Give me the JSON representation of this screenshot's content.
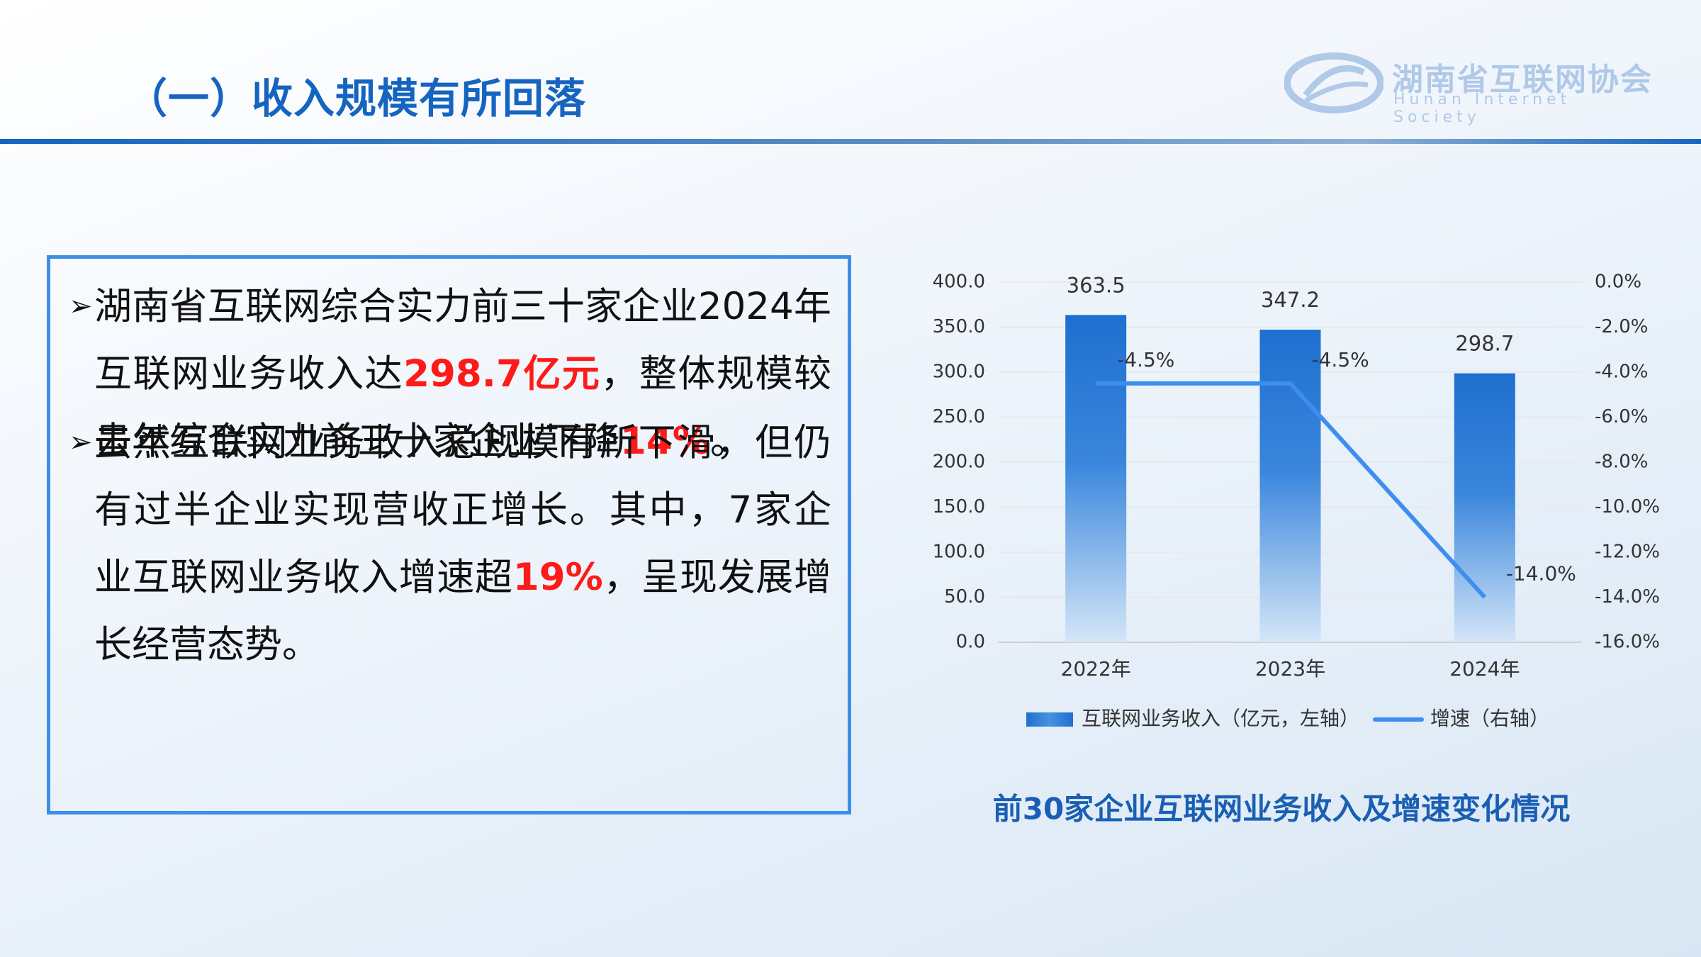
{
  "header": {
    "title": "（一）收入规模有所回落",
    "logo_cn": "湖南省互联网协会",
    "logo_en": "Hunan Internet Society"
  },
  "text_box": {
    "bullets": [
      {
        "runs": [
          {
            "text": "湖南省互联网综合实力前三十家企业2024年互联网业务收入达"
          },
          {
            "text": "298.7亿元",
            "color": "#ff1a1a"
          },
          {
            "text": "，整体规模较去年综合实力前三十家企业下降"
          },
          {
            "text": "14%",
            "color": "#ff1a1a"
          },
          {
            "text": "。"
          }
        ]
      },
      {
        "runs": [
          {
            "text": "虽然互联网业务收入总规模有所下滑，但仍有过半企业实现营收正增长。其中，7家企业互联网业务收入增速超"
          },
          {
            "text": "19%",
            "color": "#ff1a1a"
          },
          {
            "text": "，呈现发展增长经营态势。"
          }
        ]
      }
    ]
  },
  "chart_data": {
    "type": "bar-line",
    "caption": "前30家企业互联网业务收入及增速变化情况",
    "categories": [
      "2022年",
      "2023年",
      "2024年"
    ],
    "series": [
      {
        "name": "互联网业务收入（亿元，左轴）",
        "type": "bar",
        "color": "#1e6fd0",
        "values": [
          363.5,
          347.2,
          298.7
        ]
      },
      {
        "name": "增速（右轴）",
        "type": "line",
        "axis": "y2",
        "color": "#3d8ef0",
        "values": [
          -4.5,
          -4.5,
          -14.0
        ],
        "value_labels": [
          "-4.5%",
          "-4.5%",
          "-14.0%"
        ]
      }
    ],
    "ylim": [
      0,
      400
    ],
    "yticks": [
      {
        "value": 0,
        "label": "0.0"
      },
      {
        "value": 50,
        "label": "50.0"
      },
      {
        "value": 100,
        "label": "100.0"
      },
      {
        "value": 150,
        "label": "150.0"
      },
      {
        "value": 200,
        "label": "200.0"
      },
      {
        "value": 250,
        "label": "250.0"
      },
      {
        "value": 300,
        "label": "300.0"
      },
      {
        "value": 350,
        "label": "350.0"
      },
      {
        "value": 400,
        "label": "400.0"
      }
    ],
    "y2lim": [
      -16,
      0
    ],
    "y2ticks": [
      {
        "value": -16,
        "label": "-16.0%"
      },
      {
        "value": -14,
        "label": "-14.0%"
      },
      {
        "value": -12,
        "label": "-12.0%"
      },
      {
        "value": -10,
        "label": "-10.0%"
      },
      {
        "value": -8,
        "label": "-8.0%"
      },
      {
        "value": -6,
        "label": "-6.0%"
      },
      {
        "value": -4,
        "label": "-4.0%"
      },
      {
        "value": -2,
        "label": "-2.0%"
      },
      {
        "value": 0,
        "label": "0.0%"
      }
    ],
    "grid": true,
    "legend": "bottom"
  }
}
